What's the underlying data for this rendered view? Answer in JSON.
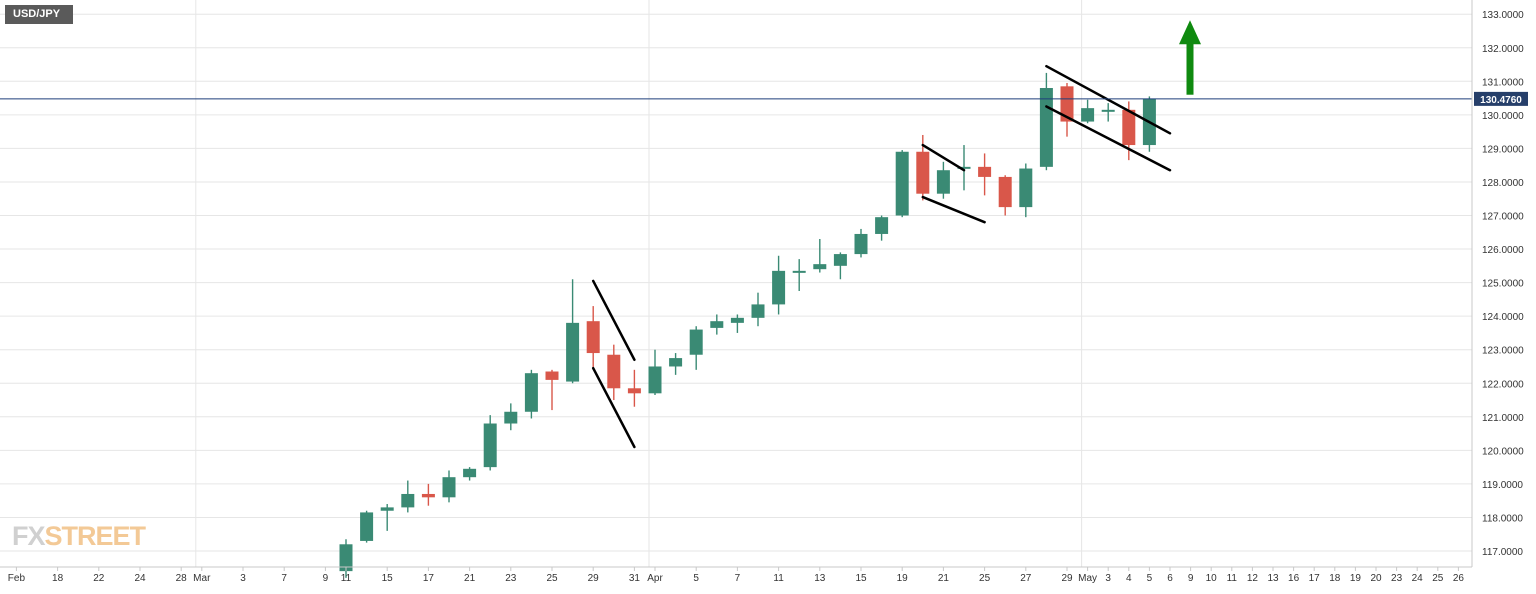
{
  "symbol": "USD/JPY",
  "logo": {
    "fx": "FX",
    "street": "STREET"
  },
  "current_price_label": "130.4760",
  "colors": {
    "bull": "#3a8a74",
    "bear": "#d9574a",
    "grid": "#e6e6e6",
    "price_line": "#1f3f7a",
    "arrow": "#0f8a0f",
    "trend": "#000000",
    "axis_text": "#333333",
    "badge_bg": "#263f6a"
  },
  "chart_data": {
    "type": "candlestick",
    "title": "USD/JPY",
    "ylim": [
      116.5,
      133.4
    ],
    "y_ticks": [
      "117.0000",
      "118.0000",
      "119.0000",
      "120.0000",
      "121.0000",
      "122.0000",
      "123.0000",
      "124.0000",
      "125.0000",
      "126.0000",
      "127.0000",
      "128.0000",
      "129.0000",
      "130.0000",
      "131.0000",
      "132.0000",
      "133.0000"
    ],
    "y_tick_values": [
      117,
      118,
      119,
      120,
      121,
      122,
      123,
      124,
      125,
      126,
      127,
      128,
      129,
      130,
      131,
      132,
      133
    ],
    "x_tick_labels": [
      "Feb",
      "18",
      "22",
      "24",
      "28",
      "Mar",
      "3",
      "7",
      "9",
      "11",
      "15",
      "17",
      "21",
      "23",
      "25",
      "29",
      "31",
      "Apr",
      "5",
      "7",
      "11",
      "13",
      "15",
      "19",
      "21",
      "25",
      "27",
      "29",
      "May",
      "3",
      "4",
      "5",
      "6",
      "9",
      "10",
      "11",
      "12",
      "13",
      "16",
      "17",
      "18",
      "19",
      "20",
      "23",
      "24",
      "25",
      "26"
    ],
    "x_tick_slots": [
      -16,
      -14,
      -12,
      -10,
      -8,
      -7,
      -5,
      -3,
      -1,
      0,
      2,
      4,
      6,
      8,
      10,
      12,
      14,
      15,
      17,
      19,
      21,
      23,
      25,
      27,
      29,
      31,
      33,
      35,
      36,
      37,
      38,
      39,
      40,
      41,
      42,
      43,
      44,
      45,
      46,
      47,
      48,
      49,
      50,
      51,
      52,
      53,
      54
    ],
    "candles": [
      {
        "date": "Mar 11",
        "o": 116.4,
        "h": 117.35,
        "l": 116.2,
        "c": 117.2
      },
      {
        "date": "Mar 14",
        "o": 117.3,
        "h": 118.2,
        "l": 117.25,
        "c": 118.15
      },
      {
        "date": "Mar 15",
        "o": 118.2,
        "h": 118.4,
        "l": 117.6,
        "c": 118.3
      },
      {
        "date": "Mar 16",
        "o": 118.3,
        "h": 119.1,
        "l": 118.15,
        "c": 118.7
      },
      {
        "date": "Mar 17",
        "o": 118.7,
        "h": 119.0,
        "l": 118.35,
        "c": 118.6
      },
      {
        "date": "Mar 18",
        "o": 118.6,
        "h": 119.4,
        "l": 118.45,
        "c": 119.2
      },
      {
        "date": "Mar 21",
        "o": 119.2,
        "h": 119.5,
        "l": 119.1,
        "c": 119.45
      },
      {
        "date": "Mar 22",
        "o": 119.5,
        "h": 121.05,
        "l": 119.4,
        "c": 120.8
      },
      {
        "date": "Mar 23",
        "o": 120.8,
        "h": 121.4,
        "l": 120.6,
        "c": 121.15
      },
      {
        "date": "Mar 24",
        "o": 121.15,
        "h": 122.4,
        "l": 120.95,
        "c": 122.3
      },
      {
        "date": "Mar 25",
        "o": 122.35,
        "h": 122.4,
        "l": 121.2,
        "c": 122.1
      },
      {
        "date": "Mar 28",
        "o": 122.05,
        "h": 125.1,
        "l": 122.0,
        "c": 123.8
      },
      {
        "date": "Mar 29",
        "o": 123.85,
        "h": 124.3,
        "l": 122.4,
        "c": 122.9
      },
      {
        "date": "Mar 30",
        "o": 122.85,
        "h": 123.15,
        "l": 121.5,
        "c": 121.85
      },
      {
        "date": "Mar 31",
        "o": 121.85,
        "h": 122.4,
        "l": 121.3,
        "c": 121.7
      },
      {
        "date": "Apr 1",
        "o": 121.7,
        "h": 123.0,
        "l": 121.65,
        "c": 122.5
      },
      {
        "date": "Apr 4",
        "o": 122.5,
        "h": 122.9,
        "l": 122.25,
        "c": 122.75
      },
      {
        "date": "Apr 5",
        "o": 122.85,
        "h": 123.7,
        "l": 122.4,
        "c": 123.6
      },
      {
        "date": "Apr 6",
        "o": 123.65,
        "h": 124.05,
        "l": 123.45,
        "c": 123.85
      },
      {
        "date": "Apr 7",
        "o": 123.8,
        "h": 124.05,
        "l": 123.5,
        "c": 123.95
      },
      {
        "date": "Apr 8",
        "o": 123.95,
        "h": 124.7,
        "l": 123.7,
        "c": 124.35
      },
      {
        "date": "Apr 11",
        "o": 124.35,
        "h": 125.8,
        "l": 124.05,
        "c": 125.35
      },
      {
        "date": "Apr 12",
        "o": 125.35,
        "h": 125.7,
        "l": 124.75,
        "c": 125.35
      },
      {
        "date": "Apr 13",
        "o": 125.4,
        "h": 126.3,
        "l": 125.3,
        "c": 125.55
      },
      {
        "date": "Apr 14",
        "o": 125.5,
        "h": 125.9,
        "l": 125.1,
        "c": 125.85
      },
      {
        "date": "Apr 15",
        "o": 125.85,
        "h": 126.6,
        "l": 125.75,
        "c": 126.45
      },
      {
        "date": "Apr 18",
        "o": 126.45,
        "h": 127.0,
        "l": 126.25,
        "c": 126.95
      },
      {
        "date": "Apr 19",
        "o": 127.0,
        "h": 128.95,
        "l": 126.95,
        "c": 128.9
      },
      {
        "date": "Apr 20",
        "o": 128.9,
        "h": 129.4,
        "l": 127.45,
        "c": 127.65
      },
      {
        "date": "Apr 21",
        "o": 127.65,
        "h": 128.6,
        "l": 127.5,
        "c": 128.35
      },
      {
        "date": "Apr 22",
        "o": 128.4,
        "h": 129.1,
        "l": 127.75,
        "c": 128.45
      },
      {
        "date": "Apr 25",
        "o": 128.45,
        "h": 128.85,
        "l": 127.6,
        "c": 128.15
      },
      {
        "date": "Apr 26",
        "o": 128.15,
        "h": 128.2,
        "l": 127.0,
        "c": 127.25
      },
      {
        "date": "Apr 27",
        "o": 127.25,
        "h": 128.55,
        "l": 126.95,
        "c": 128.4
      },
      {
        "date": "Apr 28",
        "o": 128.45,
        "h": 131.25,
        "l": 128.35,
        "c": 130.8
      },
      {
        "date": "Apr 29",
        "o": 130.85,
        "h": 130.95,
        "l": 129.35,
        "c": 129.8
      },
      {
        "date": "May 2",
        "o": 129.8,
        "h": 130.45,
        "l": 129.75,
        "c": 130.2
      },
      {
        "date": "May 3",
        "o": 130.15,
        "h": 130.35,
        "l": 129.8,
        "c": 130.15
      },
      {
        "date": "May 4",
        "o": 130.15,
        "h": 130.4,
        "l": 128.65,
        "c": 129.1
      },
      {
        "date": "May 5",
        "o": 129.1,
        "h": 130.55,
        "l": 128.9,
        "c": 130.48
      }
    ],
    "pattern_lines": [
      {
        "name": "flag-1-upper",
        "from": {
          "slot": 12,
          "price": 125.05
        },
        "to": {
          "slot": 14,
          "price": 122.7
        }
      },
      {
        "name": "flag-1-lower",
        "from": {
          "slot": 12,
          "price": 122.45
        },
        "to": {
          "slot": 14,
          "price": 120.1
        }
      },
      {
        "name": "flag-2-upper",
        "from": {
          "slot": 28,
          "price": 129.1
        },
        "to": {
          "slot": 30,
          "price": 128.35
        }
      },
      {
        "name": "flag-2-lower",
        "from": {
          "slot": 28,
          "price": 127.55
        },
        "to": {
          "slot": 31,
          "price": 126.8
        }
      },
      {
        "name": "flag-3-upper",
        "from": {
          "slot": 34,
          "price": 131.45
        },
        "to": {
          "slot": 40,
          "price": 129.45
        }
      },
      {
        "name": "flag-3-lower",
        "from": {
          "slot": 34,
          "price": 130.25
        },
        "to": {
          "slot": 40,
          "price": 128.35
        }
      }
    ],
    "arrow": {
      "slot": 40,
      "from": 130.6,
      "to": 132.7
    },
    "current_price": 130.476,
    "grid": true
  }
}
